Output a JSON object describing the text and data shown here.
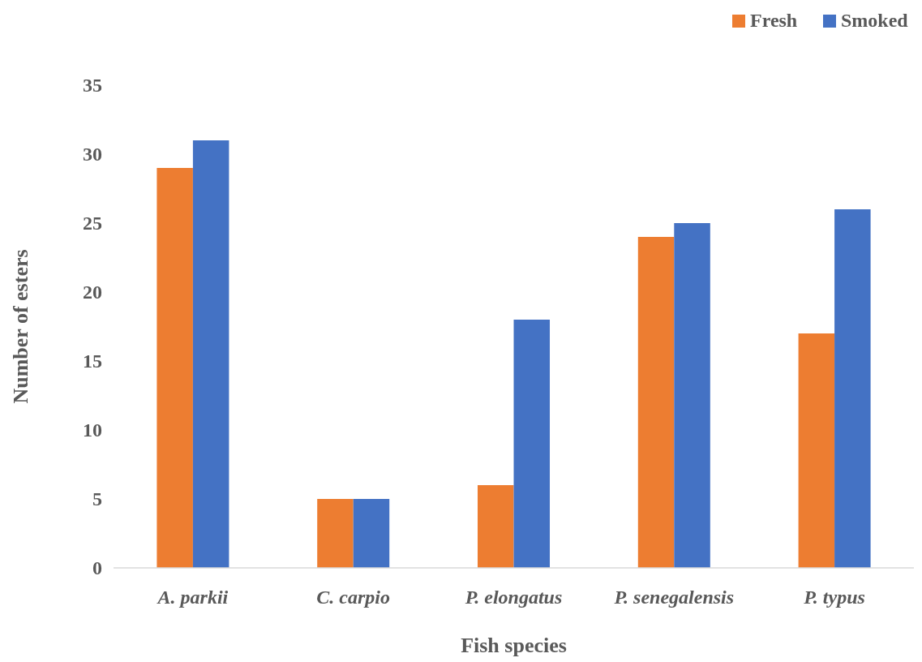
{
  "chart_data": {
    "type": "bar",
    "xlabel": "Fish species",
    "ylabel": "Number of esters",
    "categories": [
      "A. parkii",
      "C. carpio",
      "P. elongatus",
      "P. senegalensis",
      "P. typus"
    ],
    "series": [
      {
        "name": "Fresh",
        "color": "#ed7d31",
        "values": [
          29,
          5,
          6,
          24,
          17
        ]
      },
      {
        "name": "Smoked",
        "color": "#4472c4",
        "values": [
          31,
          5,
          18,
          25,
          26
        ]
      }
    ],
    "ylim": [
      0,
      35
    ],
    "yticks": [
      0,
      5,
      10,
      15,
      20,
      25,
      30,
      35
    ],
    "grid": false,
    "legend": "top right"
  }
}
